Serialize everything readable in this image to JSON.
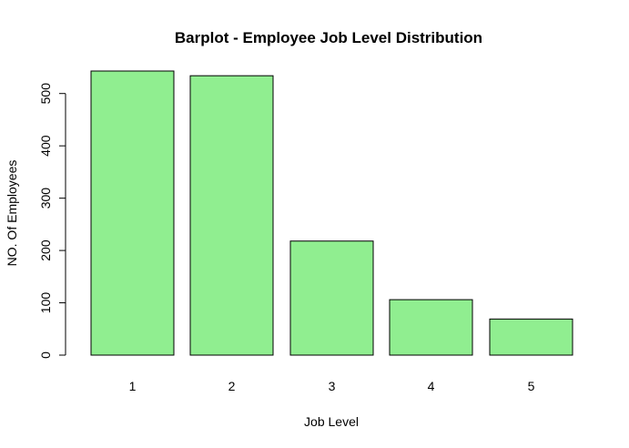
{
  "chart_data": {
    "type": "bar",
    "title": "Barplot - Employee Job Level Distribution",
    "xlabel": "Job Level",
    "ylabel": "NO. Of Employees",
    "categories": [
      "1",
      "2",
      "3",
      "4",
      "5"
    ],
    "values": [
      543,
      534,
      218,
      106,
      69
    ],
    "ylim": [
      0,
      543
    ],
    "yticks": [
      "0",
      "100",
      "200",
      "300",
      "400",
      "500"
    ],
    "bar_color": "#90ee90",
    "bar_border_color": "#000000",
    "grid": false,
    "legend": "none"
  }
}
